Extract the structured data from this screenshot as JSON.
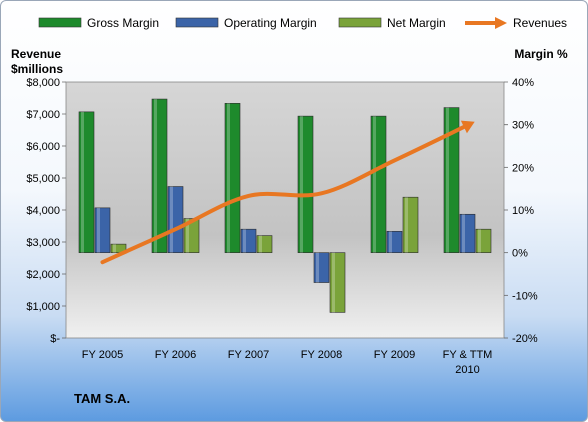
{
  "chart_data": {
    "type": "bar",
    "title": "TAM S.A.",
    "y_left_label": [
      "Revenue",
      "$millions"
    ],
    "y_right_label": "Margin %",
    "categories": [
      [
        "FY 2005"
      ],
      [
        "FY 2006"
      ],
      [
        "FY 2007"
      ],
      [
        "FY 2008"
      ],
      [
        "FY 2009"
      ],
      [
        "FY & TTM",
        "2010"
      ]
    ],
    "left_axis": {
      "min": 0,
      "max": 8000,
      "step": 1000,
      "tick_labels": [
        "$-",
        "$1,000",
        "$2,000",
        "$3,000",
        "$4,000",
        "$5,000",
        "$6,000",
        "$7,000",
        "$8,000"
      ]
    },
    "right_axis": {
      "min": -20,
      "max": 40,
      "step": 10,
      "tick_labels": [
        "-20%",
        "-10%",
        "0%",
        "10%",
        "20%",
        "30%",
        "40%"
      ]
    },
    "series": [
      {
        "name": "Gross Margin",
        "type": "bar",
        "axis": "right",
        "color": "#1e8a2c",
        "values": [
          33,
          36,
          35,
          32,
          32,
          34
        ]
      },
      {
        "name": "Operating Margin",
        "type": "bar",
        "axis": "right",
        "color": "#3b64a8",
        "values": [
          10.5,
          15.5,
          5.5,
          -7,
          5,
          9
        ]
      },
      {
        "name": "Net Margin",
        "type": "bar",
        "axis": "right",
        "color": "#7aa33a",
        "values": [
          2,
          8,
          4,
          -14,
          13,
          5.5
        ]
      },
      {
        "name": "Revenues",
        "type": "line",
        "axis": "left",
        "color": "#e87722",
        "values": [
          2370,
          3400,
          4440,
          4520,
          5550,
          6650
        ]
      }
    ],
    "grid": false,
    "legend_position": "top"
  }
}
